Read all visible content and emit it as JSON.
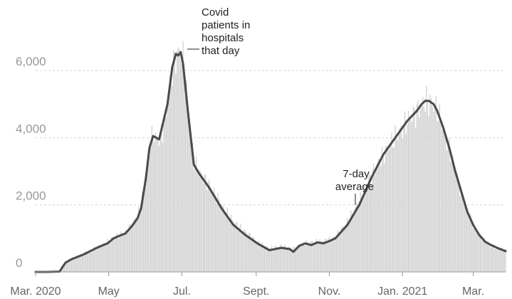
{
  "chart_data": {
    "type": "bar",
    "title": "",
    "xlabel": "",
    "ylabel": "",
    "ylim": [
      0,
      7000
    ],
    "y_ticks": [
      "0",
      "2,000",
      "4,000",
      "6,000"
    ],
    "y_tick_values": [
      0,
      2000,
      4000,
      6000
    ],
    "x_ticks": [
      "Mar. 2020",
      "May",
      "Jul.",
      "Sept.",
      "Nov.",
      "Jan. 2021",
      "Mar."
    ],
    "x_tick_days": [
      0,
      61,
      122,
      184,
      245,
      306,
      365
    ],
    "x_range_days": [
      0,
      392
    ],
    "grid": true,
    "annotations": {
      "daily_label": [
        "Covid",
        "patients in",
        "hospitals",
        "that day"
      ],
      "average_label": [
        "7-day",
        "average"
      ]
    },
    "series": [
      {
        "kind": "daily",
        "points": [
          [
            0,
            0
          ],
          [
            10,
            0
          ],
          [
            20,
            10
          ],
          [
            22,
            150
          ],
          [
            25,
            280
          ],
          [
            30,
            400
          ],
          [
            40,
            550
          ],
          [
            50,
            720
          ],
          [
            55,
            800
          ],
          [
            60,
            900
          ],
          [
            65,
            1050
          ],
          [
            70,
            1100
          ],
          [
            75,
            1200
          ],
          [
            80,
            1400
          ],
          [
            85,
            1700
          ],
          [
            88,
            2000
          ],
          [
            92,
            2900
          ],
          [
            95,
            3700
          ],
          [
            98,
            4100
          ],
          [
            100,
            4000
          ],
          [
            104,
            4000
          ],
          [
            108,
            4500
          ],
          [
            110,
            5000
          ],
          [
            114,
            6100
          ],
          [
            118,
            6500
          ],
          [
            121,
            6550
          ],
          [
            123,
            6300
          ],
          [
            127,
            5000
          ],
          [
            132,
            3300
          ],
          [
            136,
            3000
          ],
          [
            145,
            2600
          ],
          [
            155,
            2000
          ],
          [
            165,
            1500
          ],
          [
            175,
            1200
          ],
          [
            185,
            900
          ],
          [
            195,
            700
          ],
          [
            205,
            780
          ],
          [
            215,
            700
          ],
          [
            222,
            800
          ],
          [
            228,
            900
          ],
          [
            235,
            900
          ],
          [
            242,
            950
          ],
          [
            250,
            1050
          ],
          [
            260,
            1500
          ],
          [
            270,
            2100
          ],
          [
            280,
            2900
          ],
          [
            290,
            3500
          ],
          [
            300,
            4000
          ],
          [
            310,
            4500
          ],
          [
            318,
            4800
          ],
          [
            325,
            5100
          ],
          [
            330,
            5050
          ],
          [
            335,
            4800
          ],
          [
            340,
            4300
          ],
          [
            345,
            3700
          ],
          [
            350,
            3000
          ],
          [
            355,
            2400
          ],
          [
            360,
            1800
          ],
          [
            365,
            1400
          ],
          [
            370,
            1100
          ],
          [
            375,
            900
          ],
          [
            380,
            800
          ],
          [
            385,
            700
          ],
          [
            392,
            650
          ]
        ]
      },
      {
        "kind": "7-day average",
        "points": [
          [
            0,
            0
          ],
          [
            10,
            0
          ],
          [
            20,
            10
          ],
          [
            22,
            120
          ],
          [
            25,
            280
          ],
          [
            30,
            380
          ],
          [
            40,
            520
          ],
          [
            50,
            700
          ],
          [
            55,
            780
          ],
          [
            60,
            850
          ],
          [
            65,
            1000
          ],
          [
            70,
            1080
          ],
          [
            75,
            1150
          ],
          [
            80,
            1350
          ],
          [
            85,
            1600
          ],
          [
            88,
            1900
          ],
          [
            92,
            2800
          ],
          [
            95,
            3700
          ],
          [
            98,
            4050
          ],
          [
            103,
            3950
          ],
          [
            106,
            4400
          ],
          [
            110,
            5000
          ],
          [
            114,
            6100
          ],
          [
            117,
            6500
          ],
          [
            119,
            6450
          ],
          [
            121,
            6550
          ],
          [
            123,
            6200
          ],
          [
            127,
            4800
          ],
          [
            132,
            3200
          ],
          [
            136,
            2950
          ],
          [
            145,
            2500
          ],
          [
            155,
            1900
          ],
          [
            165,
            1400
          ],
          [
            175,
            1100
          ],
          [
            185,
            850
          ],
          [
            195,
            650
          ],
          [
            205,
            720
          ],
          [
            212,
            680
          ],
          [
            215,
            600
          ],
          [
            220,
            780
          ],
          [
            225,
            850
          ],
          [
            230,
            800
          ],
          [
            235,
            880
          ],
          [
            240,
            850
          ],
          [
            245,
            920
          ],
          [
            250,
            1000
          ],
          [
            260,
            1400
          ],
          [
            270,
            2000
          ],
          [
            280,
            2800
          ],
          [
            290,
            3500
          ],
          [
            300,
            4000
          ],
          [
            310,
            4500
          ],
          [
            318,
            4800
          ],
          [
            322,
            5000
          ],
          [
            325,
            5100
          ],
          [
            328,
            5100
          ],
          [
            332,
            5000
          ],
          [
            335,
            4800
          ],
          [
            340,
            4300
          ],
          [
            345,
            3700
          ],
          [
            350,
            3000
          ],
          [
            355,
            2400
          ],
          [
            360,
            1800
          ],
          [
            365,
            1400
          ],
          [
            370,
            1100
          ],
          [
            375,
            900
          ],
          [
            380,
            800
          ],
          [
            385,
            720
          ],
          [
            392,
            620
          ]
        ]
      }
    ]
  }
}
